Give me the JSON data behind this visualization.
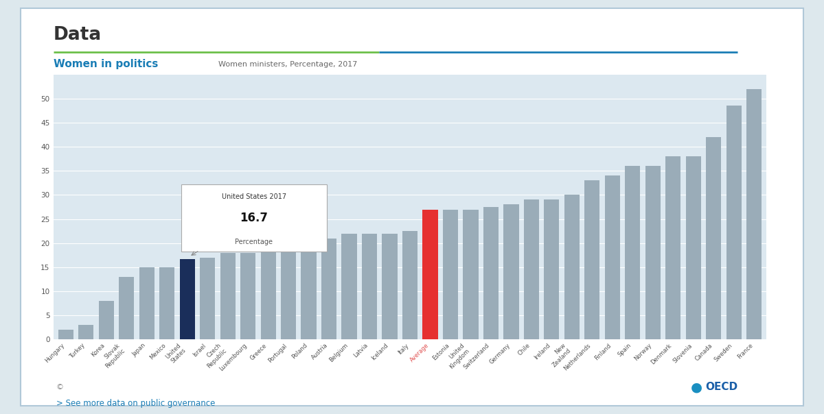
{
  "title": "Women in politics",
  "subtitle": "Women ministers, Percentage, 2017",
  "header": "Data",
  "countries": [
    "Hungary",
    "Turkey",
    "Korea",
    "Slovak\nRepublic",
    "Japan",
    "Mexico",
    "United\nStates",
    "Israel",
    "Czech\nRepublic",
    "Luxembourg",
    "Greece",
    "Portugal",
    "Poland",
    "Austria",
    "Belgium",
    "Latvia",
    "Iceland",
    "Italy",
    "Average",
    "Estonia",
    "United\nKingdom",
    "Switzerland",
    "Germany",
    "Chile",
    "Ireland",
    "New\nZealand",
    "Netherlands",
    "Finland",
    "Spain",
    "Norway",
    "Denmark",
    "Slovenia",
    "Canada",
    "Sweden",
    "France"
  ],
  "values": [
    2.0,
    3.0,
    8.0,
    13.0,
    15.0,
    15.0,
    16.7,
    17.0,
    18.0,
    18.0,
    19.0,
    20.0,
    21.0,
    21.0,
    22.0,
    22.0,
    22.0,
    22.5,
    27.0,
    27.0,
    27.0,
    27.5,
    28.0,
    29.0,
    29.0,
    30.0,
    33.0,
    34.0,
    36.0,
    36.0,
    38.0,
    38.0,
    42.0,
    48.5,
    52.0
  ],
  "bar_colors_default": "#9aacb8",
  "bar_color_us": "#1a2e5a",
  "bar_color_oecd": "#e63030",
  "chart_bg": "#dce8f0",
  "grid_color": "#ffffff",
  "title_color": "#1a7db5",
  "ylim": [
    0,
    55
  ],
  "yticks": [
    0,
    5,
    10,
    15,
    20,
    25,
    30,
    35,
    40,
    45,
    50
  ],
  "oecd_label_color": "#e05050",
  "us_bar_index": 6,
  "oecd_bar_index": 18,
  "footer_link": "> See more data on public governance",
  "footer_link_color": "#1a7db5",
  "copyright": "©",
  "decorative_line_green": "#6cc04a",
  "decorative_line_blue": "#1a7db5"
}
